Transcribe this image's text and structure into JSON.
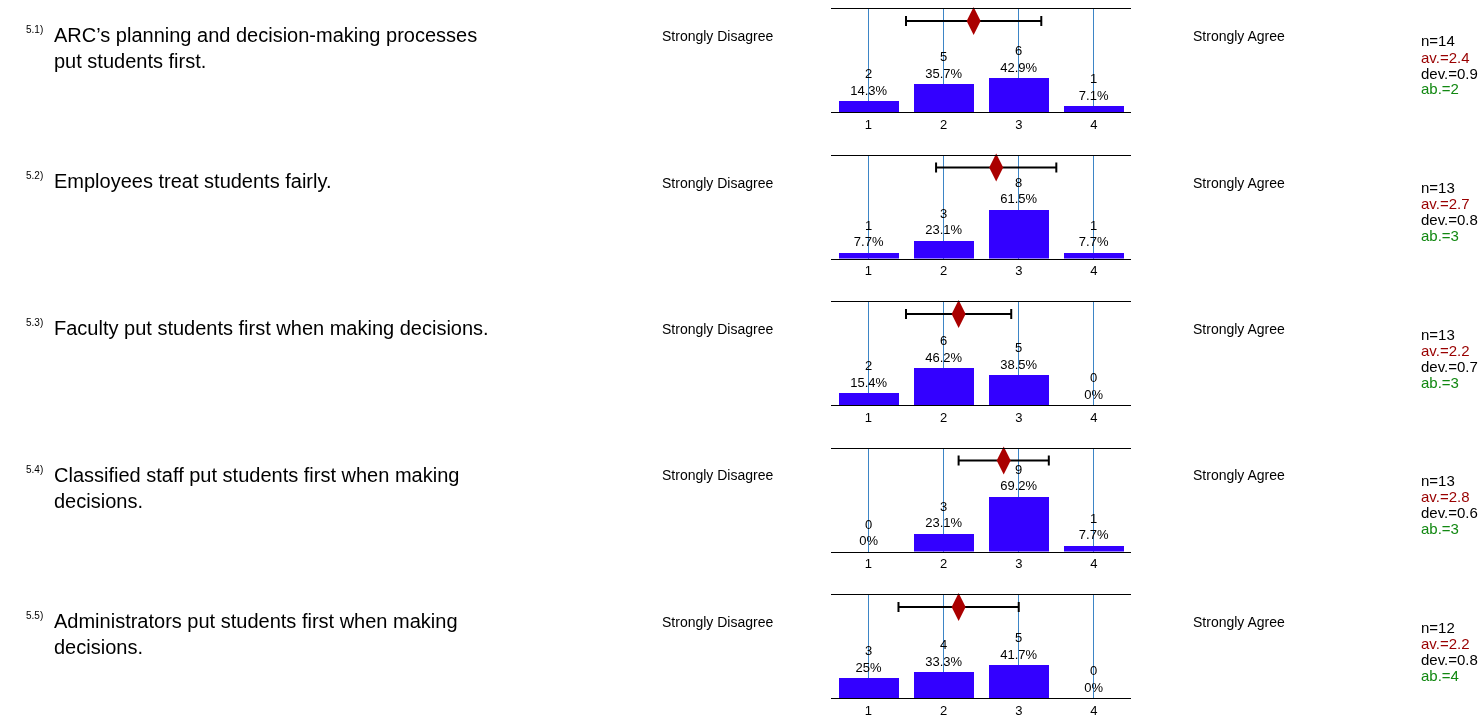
{
  "chart_data": [
    {
      "type": "bar",
      "annotations": [
        "5.1)",
        "Strongly Disagree",
        "Strongly Agree",
        "n=14",
        "av.=2.4",
        "dev.=0.9",
        "ab.=2",
        "ARC’s planning and decision-making processes\nput students first."
      ],
      "x": [
        1,
        2,
        3,
        4
      ],
      "xlim": [
        0.5,
        4.5
      ],
      "xticks": [
        1,
        2,
        3,
        4
      ],
      "ylim": [
        0,
        130
      ],
      "tick_labels": "x",
      "grid": "x",
      "legend": false,
      "series": [
        {
          "color": "#3300ff",
          "values": [
            14.3,
            35.7,
            42.9,
            7.1
          ],
          "value_labels": [
            "2\n14.3%",
            "5\n35.7%",
            "6\n42.9%",
            "1\n7.1%"
          ]
        },
        {
          "type": "scatter",
          "color": "#aa0000",
          "x": [
            2.4
          ],
          "values": [
            115
          ],
          "xerrors": [
            0.9
          ]
        }
      ]
    },
    {
      "type": "bar",
      "annotations": [
        "5.2)",
        "Strongly Disagree",
        "Strongly Agree",
        "n=13",
        "av.=2.7",
        "dev.=0.8",
        "ab.=3",
        "Employees treat students fairly."
      ],
      "x": [
        1,
        2,
        3,
        4
      ],
      "xlim": [
        0.5,
        4.5
      ],
      "xticks": [
        1,
        2,
        3,
        4
      ],
      "ylim": [
        0,
        130
      ],
      "tick_labels": "x",
      "grid": "x",
      "legend": false,
      "series": [
        {
          "color": "#3300ff",
          "values": [
            7.7,
            23.1,
            61.5,
            7.7
          ],
          "value_labels": [
            "1\n7.7%",
            "3\n23.1%",
            "8\n61.5%",
            "1\n7.7%"
          ]
        },
        {
          "type": "scatter",
          "color": "#aa0000",
          "x": [
            2.7
          ],
          "values": [
            115
          ],
          "xerrors": [
            0.8
          ]
        }
      ]
    },
    {
      "type": "bar",
      "annotations": [
        "5.3)",
        "Strongly Disagree",
        "Strongly Agree",
        "n=13",
        "av.=2.2",
        "dev.=0.7",
        "ab.=3",
        "Faculty put students first when making decisions."
      ],
      "x": [
        1,
        2,
        3,
        4
      ],
      "xlim": [
        0.5,
        4.5
      ],
      "xticks": [
        1,
        2,
        3,
        4
      ],
      "ylim": [
        0,
        130
      ],
      "tick_labels": "x",
      "grid": "x",
      "legend": false,
      "series": [
        {
          "color": "#3300ff",
          "values": [
            15.4,
            46.2,
            38.5,
            0
          ],
          "value_labels": [
            "2\n15.4%",
            "6\n46.2%",
            "5\n38.5%",
            "0\n0%"
          ]
        },
        {
          "type": "scatter",
          "color": "#aa0000",
          "x": [
            2.2
          ],
          "values": [
            115
          ],
          "xerrors": [
            0.7
          ]
        }
      ]
    },
    {
      "type": "bar",
      "annotations": [
        "5.4)",
        "Strongly Disagree",
        "Strongly Agree",
        "n=13",
        "av.=2.8",
        "dev.=0.6",
        "ab.=3",
        "Classified staff put students first when making\ndecisions."
      ],
      "x": [
        1,
        2,
        3,
        4
      ],
      "xlim": [
        0.5,
        4.5
      ],
      "xticks": [
        1,
        2,
        3,
        4
      ],
      "ylim": [
        0,
        130
      ],
      "tick_labels": "x",
      "grid": "x",
      "legend": false,
      "series": [
        {
          "color": "#3300ff",
          "values": [
            0,
            23.1,
            69.2,
            7.7
          ],
          "value_labels": [
            "0\n0%",
            "3\n23.1%",
            "9\n69.2%",
            "1\n7.7%"
          ]
        },
        {
          "type": "scatter",
          "color": "#aa0000",
          "x": [
            2.8
          ],
          "values": [
            115
          ],
          "xerrors": [
            0.6
          ]
        }
      ]
    },
    {
      "type": "bar",
      "annotations": [
        "5.5)",
        "Strongly Disagree",
        "Strongly Agree",
        "n=12",
        "av.=2.2",
        "dev.=0.8",
        "ab.=4",
        "Administrators put students first when making\ndecisions."
      ],
      "x": [
        1,
        2,
        3,
        4
      ],
      "xlim": [
        0.5,
        4.5
      ],
      "xticks": [
        1,
        2,
        3,
        4
      ],
      "ylim": [
        0,
        130
      ],
      "tick_labels": "x",
      "grid": "x",
      "legend": false,
      "series": [
        {
          "color": "#3300ff",
          "values": [
            25,
            33.3,
            41.7,
            0
          ],
          "value_labels": [
            "3\n25%",
            "4\n33.3%",
            "5\n41.7%",
            "0\n0%"
          ]
        },
        {
          "type": "scatter",
          "color": "#aa0000",
          "x": [
            2.2
          ],
          "values": [
            115
          ],
          "xerrors": [
            0.8
          ]
        }
      ]
    }
  ]
}
